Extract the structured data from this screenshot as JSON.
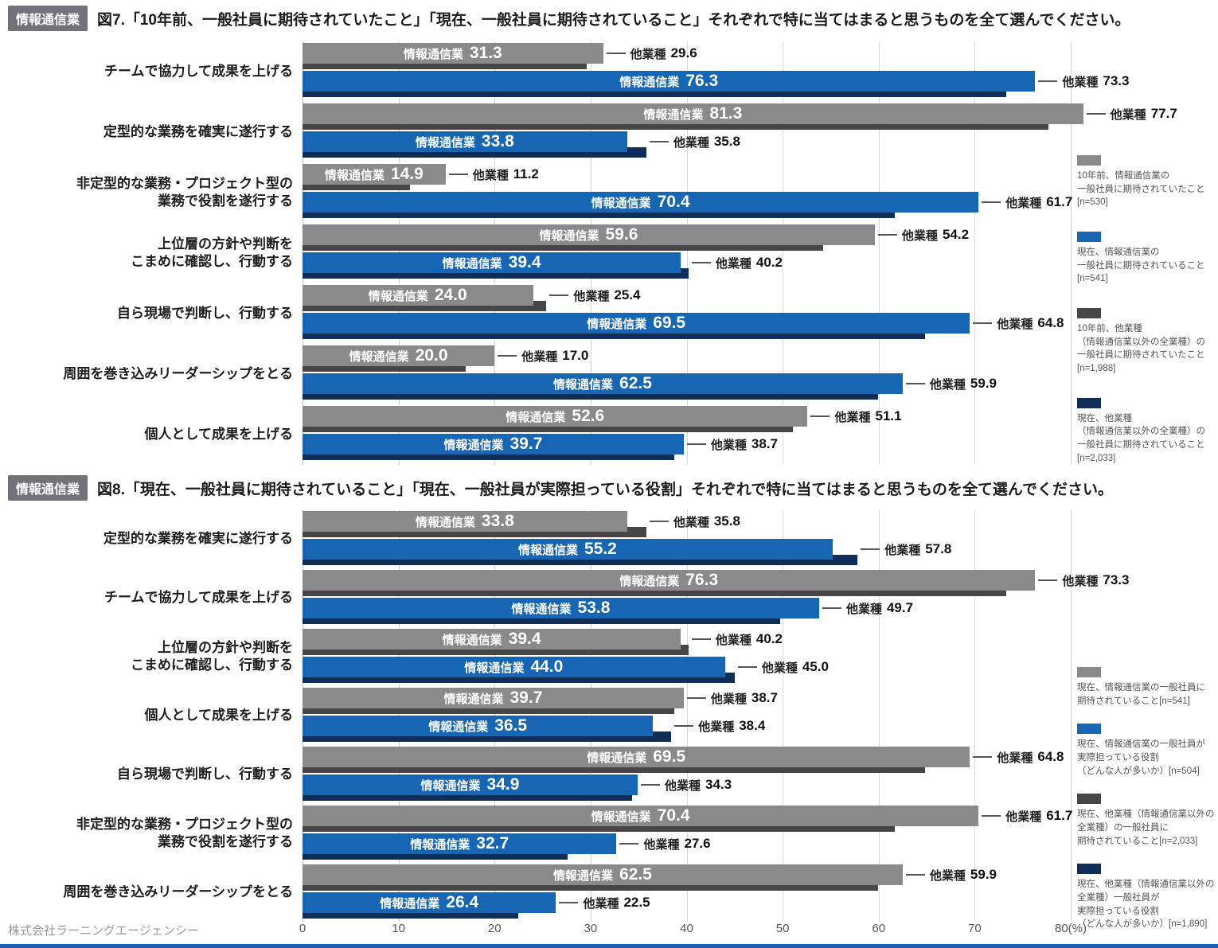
{
  "footer": "株式会社ラーニングエージェンシー",
  "axis": {
    "tick_values": [
      0,
      10,
      20,
      30,
      40,
      50,
      60,
      70,
      80
    ],
    "tick_labels": [
      "0",
      "10",
      "20",
      "30",
      "40",
      "50",
      "60",
      "70",
      "80(%)"
    ],
    "max": 80
  },
  "colors": {
    "bar_gray": "#8a8a8a",
    "bar_dark_gray": "#464646",
    "bar_blue": "#1666b3",
    "bar_navy": "#0e2d57",
    "accent_bottom": "#1666b3",
    "badge_bg": "#72727a"
  },
  "series_names": {
    "main": "情報通信業",
    "sub": "他業種"
  },
  "chart_data": [
    {
      "type": "bar",
      "badge": "情報通信業",
      "title": "図7.「10年前、一般社員に期待されていたこと」「現在、一般社員に期待されていること」それぞれで特に当てはまると思うものを全て選んでください。",
      "xlabel": "(%)",
      "xlim": [
        0,
        80
      ],
      "rows": [
        {
          "category": [
            "チームで協力して成果を上げる"
          ],
          "pairs": [
            {
              "key": "gray",
              "main": "31.3",
              "sub": "29.6"
            },
            {
              "key": "blue",
              "main": "76.3",
              "sub": "73.3"
            }
          ]
        },
        {
          "category": [
            "定型的な業務を確実に遂行する"
          ],
          "pairs": [
            {
              "key": "gray",
              "main": "81.3",
              "sub": "77.7"
            },
            {
              "key": "blue",
              "main": "33.8",
              "sub": "35.8"
            }
          ]
        },
        {
          "category": [
            "非定型的な業務・プロジェクト型の",
            "業務で役割を遂行する"
          ],
          "pairs": [
            {
              "key": "gray",
              "main": "14.9",
              "sub": "11.2"
            },
            {
              "key": "blue",
              "main": "70.4",
              "sub": "61.7"
            }
          ]
        },
        {
          "category": [
            "上位層の方針や判断を",
            "こまめに確認し、行動する"
          ],
          "pairs": [
            {
              "key": "gray",
              "main": "59.6",
              "sub": "54.2"
            },
            {
              "key": "blue",
              "main": "39.4",
              "sub": "40.2"
            }
          ]
        },
        {
          "category": [
            "自ら現場で判断し、行動する"
          ],
          "pairs": [
            {
              "key": "gray",
              "main": "24.0",
              "sub": "25.4"
            },
            {
              "key": "blue",
              "main": "69.5",
              "sub": "64.8"
            }
          ]
        },
        {
          "category": [
            "周囲を巻き込みリーダーシップをとる"
          ],
          "pairs": [
            {
              "key": "gray",
              "main": "20.0",
              "sub": "17.0"
            },
            {
              "key": "blue",
              "main": "62.5",
              "sub": "59.9"
            }
          ]
        },
        {
          "category": [
            "個人として成果を上げる"
          ],
          "pairs": [
            {
              "key": "gray",
              "main": "52.6",
              "sub": "51.1"
            },
            {
              "key": "blue",
              "main": "39.7",
              "sub": "38.7"
            }
          ]
        }
      ],
      "legend": [
        {
          "swatch": "gray",
          "lines": [
            "10年前、情報通信業の",
            "一般社員に期待されていたこと",
            "[n=530]"
          ]
        },
        {
          "swatch": "blue",
          "lines": [
            "現在、情報通信業の",
            "一般社員に期待されていること",
            "[n=541]"
          ]
        },
        {
          "swatch": "darkgray",
          "lines": [
            "10年前、他業種",
            "（情報通信業以外の全業種）の",
            "一般社員に期待されていたこと",
            "[n=1,988]"
          ]
        },
        {
          "swatch": "navy",
          "lines": [
            "現在、他業種",
            "（情報通信業以外の全業種）の",
            "一般社員に期待されていること",
            "[n=2,033]"
          ]
        }
      ]
    },
    {
      "type": "bar",
      "badge": "情報通信業",
      "title": "図8.「現在、一般社員に期待されていること」「現在、一般社員が実際担っている役割」それぞれで特に当てはまると思うものを全て選んでください。",
      "xlabel": "(%)",
      "xlim": [
        0,
        80
      ],
      "rows": [
        {
          "category": [
            "定型的な業務を確実に遂行する"
          ],
          "pairs": [
            {
              "key": "gray",
              "main": "33.8",
              "sub": "35.8"
            },
            {
              "key": "blue",
              "main": "55.2",
              "sub": "57.8"
            }
          ]
        },
        {
          "category": [
            "チームで協力して成果を上げる"
          ],
          "pairs": [
            {
              "key": "gray",
              "main": "76.3",
              "sub": "73.3"
            },
            {
              "key": "blue",
              "main": "53.8",
              "sub": "49.7"
            }
          ]
        },
        {
          "category": [
            "上位層の方針や判断を",
            "こまめに確認し、行動する"
          ],
          "pairs": [
            {
              "key": "gray",
              "main": "39.4",
              "sub": "40.2"
            },
            {
              "key": "blue",
              "main": "44.0",
              "sub": "45.0"
            }
          ]
        },
        {
          "category": [
            "個人として成果を上げる"
          ],
          "pairs": [
            {
              "key": "gray",
              "main": "39.7",
              "sub": "38.7"
            },
            {
              "key": "blue",
              "main": "36.5",
              "sub": "38.4"
            }
          ]
        },
        {
          "category": [
            "自ら現場で判断し、行動する"
          ],
          "pairs": [
            {
              "key": "gray",
              "main": "69.5",
              "sub": "64.8"
            },
            {
              "key": "blue",
              "main": "34.9",
              "sub": "34.3"
            }
          ]
        },
        {
          "category": [
            "非定型的な業務・プロジェクト型の",
            "業務で役割を遂行する"
          ],
          "pairs": [
            {
              "key": "gray",
              "main": "70.4",
              "sub": "61.7"
            },
            {
              "key": "blue",
              "main": "32.7",
              "sub": "27.6"
            }
          ]
        },
        {
          "category": [
            "周囲を巻き込みリーダーシップをとる"
          ],
          "pairs": [
            {
              "key": "gray",
              "main": "62.5",
              "sub": "59.9"
            },
            {
              "key": "blue",
              "main": "26.4",
              "sub": "22.5"
            }
          ]
        }
      ],
      "legend": [
        {
          "swatch": "gray",
          "lines": [
            "現在、情報通信業の一般社員に",
            "期待されていること[n=541]"
          ]
        },
        {
          "swatch": "blue",
          "lines": [
            "現在、情報通信業の一般社員が",
            "実際担っている役割",
            "（どんな人が多いか）[n=504]"
          ]
        },
        {
          "swatch": "darkgray",
          "lines": [
            "現在、他業種（情報通信業以外の",
            "全業種）の一般社員に",
            "期待されていること[n=2,033]"
          ]
        },
        {
          "swatch": "navy",
          "lines": [
            "現在、他業種（情報通信業以外の",
            "全業種）一般社員が",
            "実際担っている役割",
            "（どんな人が多いか）[n=1,890]"
          ]
        }
      ]
    }
  ]
}
